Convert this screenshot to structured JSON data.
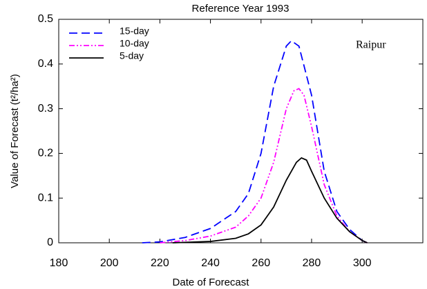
{
  "chart_data": {
    "type": "line",
    "title": "Reference Year 1993",
    "x_label": "Date of Forecast",
    "y_label": "Value of Forecast (t²/ha²)",
    "annotation": "Raipur",
    "xlim": [
      180,
      324
    ],
    "xticks": [
      180,
      200,
      220,
      240,
      260,
      280,
      300
    ],
    "ylim": [
      0,
      0.5
    ],
    "yticks": [
      0,
      0.1,
      0.2,
      0.3,
      0.4,
      0.5
    ],
    "legend": "upper left",
    "series": [
      {
        "name": "15-day",
        "color": "#0000ff",
        "dash": "12,6",
        "x": [
          213,
          220,
          230,
          240,
          250,
          255,
          260,
          265,
          270,
          272,
          275,
          280,
          285,
          290,
          295,
          300,
          302
        ],
        "values": [
          0,
          0.002,
          0.012,
          0.032,
          0.07,
          0.11,
          0.2,
          0.35,
          0.44,
          0.452,
          0.44,
          0.33,
          0.16,
          0.07,
          0.03,
          0.005,
          0
        ]
      },
      {
        "name": "10-day",
        "color": "#ff00ff",
        "dash": "8,3,2,3,2,3",
        "x": [
          220,
          230,
          240,
          250,
          255,
          260,
          265,
          270,
          273,
          275,
          277,
          280,
          285,
          290,
          295,
          300,
          302
        ],
        "values": [
          0,
          0.005,
          0.015,
          0.035,
          0.06,
          0.1,
          0.18,
          0.3,
          0.34,
          0.345,
          0.33,
          0.26,
          0.13,
          0.06,
          0.025,
          0.005,
          0
        ]
      },
      {
        "name": "5-day",
        "color": "#000000",
        "dash": "none",
        "x": [
          225,
          240,
          250,
          255,
          260,
          265,
          270,
          274,
          276,
          278,
          280,
          285,
          290,
          295,
          300,
          302
        ],
        "values": [
          0,
          0.003,
          0.01,
          0.02,
          0.04,
          0.08,
          0.14,
          0.18,
          0.19,
          0.185,
          0.16,
          0.1,
          0.055,
          0.025,
          0.005,
          0
        ]
      }
    ]
  }
}
